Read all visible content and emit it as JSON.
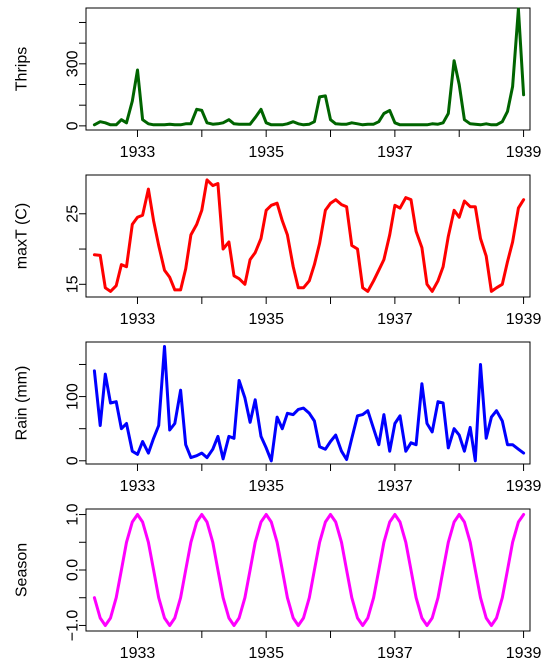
{
  "chart_data": [
    {
      "type": "line",
      "ylabel": "Thrips",
      "color": "#006400",
      "xlim": [
        1932.2,
        1939.1
      ],
      "ylim": [
        -20,
        570
      ],
      "x_ticks": [
        "1933",
        "1935",
        "1937",
        "1939"
      ],
      "y_ticks": [
        "0",
        "300"
      ],
      "y_minor_ticks": [
        0,
        100,
        200,
        300,
        400,
        500
      ],
      "series": [
        {
          "x": [
            1932.33,
            1932.42,
            1932.5,
            1932.58,
            1932.67,
            1932.75,
            1932.83,
            1932.92,
            1933.0,
            1933.08,
            1933.17,
            1933.25,
            1933.33,
            1933.42,
            1933.5,
            1933.58,
            1933.67,
            1933.75,
            1933.83,
            1933.92,
            1934.0,
            1934.08,
            1934.17,
            1934.25,
            1934.33,
            1934.42,
            1934.5,
            1934.58,
            1934.67,
            1934.75,
            1934.83,
            1934.92,
            1935.0,
            1935.08,
            1935.17,
            1935.25,
            1935.33,
            1935.42,
            1935.5,
            1935.58,
            1935.67,
            1935.75,
            1935.83,
            1935.92,
            1936.0,
            1936.08,
            1936.17,
            1936.25,
            1936.33,
            1936.42,
            1936.5,
            1936.58,
            1936.67,
            1936.75,
            1936.83,
            1936.92,
            1937.0,
            1937.08,
            1937.17,
            1937.25,
            1937.33,
            1937.42,
            1937.5,
            1937.58,
            1937.67,
            1937.75,
            1937.83,
            1937.92,
            1938.0,
            1938.08,
            1938.17,
            1938.25,
            1938.33,
            1938.42,
            1938.5,
            1938.58,
            1938.67,
            1938.75,
            1938.83,
            1938.92,
            1939.0
          ],
          "values": [
            5,
            20,
            15,
            5,
            5,
            30,
            15,
            120,
            270,
            30,
            10,
            5,
            5,
            5,
            8,
            5,
            5,
            10,
            10,
            80,
            75,
            15,
            8,
            10,
            15,
            30,
            10,
            8,
            8,
            8,
            40,
            80,
            15,
            5,
            5,
            5,
            10,
            20,
            10,
            5,
            8,
            20,
            140,
            145,
            30,
            10,
            8,
            8,
            15,
            10,
            5,
            8,
            8,
            20,
            60,
            75,
            15,
            5,
            5,
            5,
            5,
            5,
            5,
            10,
            8,
            15,
            60,
            315,
            200,
            30,
            10,
            8,
            5,
            10,
            5,
            5,
            20,
            70,
            190,
            565,
            150
          ]
        }
      ]
    },
    {
      "type": "line",
      "ylabel": "maxT (C)",
      "color": "#ff0000",
      "xlim": [
        1932.2,
        1939.1
      ],
      "ylim": [
        13.2,
        30.5
      ],
      "x_ticks": [
        "1933",
        "1935",
        "1937",
        "1939"
      ],
      "y_ticks": [
        "15",
        "25"
      ],
      "y_minor_ticks": [
        15,
        20,
        25
      ],
      "series": [
        {
          "x": [
            1932.33,
            1932.42,
            1932.5,
            1932.58,
            1932.67,
            1932.75,
            1932.83,
            1932.92,
            1933.0,
            1933.08,
            1933.17,
            1933.25,
            1933.33,
            1933.42,
            1933.5,
            1933.58,
            1933.67,
            1933.75,
            1933.83,
            1933.92,
            1934.0,
            1934.08,
            1934.17,
            1934.25,
            1934.33,
            1934.42,
            1934.5,
            1934.58,
            1934.67,
            1934.75,
            1934.83,
            1934.92,
            1935.0,
            1935.08,
            1935.17,
            1935.25,
            1935.33,
            1935.42,
            1935.5,
            1935.58,
            1935.67,
            1935.75,
            1935.83,
            1935.92,
            1936.0,
            1936.08,
            1936.17,
            1936.25,
            1936.33,
            1936.42,
            1936.5,
            1936.58,
            1936.67,
            1936.75,
            1936.83,
            1936.92,
            1937.0,
            1937.08,
            1937.17,
            1937.25,
            1937.33,
            1937.42,
            1937.5,
            1937.58,
            1937.67,
            1937.75,
            1937.83,
            1937.92,
            1938.0,
            1938.08,
            1938.17,
            1938.25,
            1938.33,
            1938.42,
            1938.5,
            1938.58,
            1938.67,
            1938.75,
            1938.83,
            1938.92,
            1939.0
          ],
          "values": [
            19.2,
            19.1,
            14.5,
            14.0,
            14.8,
            17.8,
            17.5,
            23.5,
            24.5,
            24.8,
            28.5,
            24.0,
            20.5,
            17.0,
            16.0,
            14.2,
            14.2,
            17.2,
            22.0,
            23.5,
            25.5,
            29.8,
            29.0,
            29.3,
            20.0,
            21.0,
            16.2,
            15.8,
            15.0,
            18.5,
            19.5,
            21.5,
            25.5,
            26.2,
            26.5,
            24.0,
            22.0,
            17.5,
            14.5,
            14.5,
            15.5,
            17.8,
            20.8,
            25.5,
            26.5,
            27.0,
            26.3,
            26.0,
            20.5,
            20.0,
            14.5,
            14.0,
            15.5,
            17.0,
            18.5,
            22.0,
            26.2,
            25.8,
            27.3,
            27.0,
            22.5,
            20.2,
            15.0,
            14.0,
            15.5,
            17.5,
            21.8,
            25.5,
            24.5,
            26.8,
            26.0,
            26.0,
            21.5,
            19.0,
            14.0,
            14.5,
            15.0,
            18.2,
            21.0,
            25.8,
            27.0
          ]
        }
      ]
    },
    {
      "type": "line",
      "ylabel": "Rain (mm)",
      "color": "#0000ff",
      "xlim": [
        1932.2,
        1939.1
      ],
      "ylim": [
        -5,
        185
      ],
      "x_ticks": [
        "1933",
        "1935",
        "1937",
        "1939"
      ],
      "y_ticks": [
        "0",
        "100"
      ],
      "y_minor_ticks": [
        0,
        50,
        100,
        150
      ],
      "series": [
        {
          "x": [
            1932.33,
            1932.42,
            1932.5,
            1932.58,
            1932.67,
            1932.75,
            1932.83,
            1932.92,
            1933.0,
            1933.08,
            1933.17,
            1933.25,
            1933.33,
            1933.42,
            1933.5,
            1933.58,
            1933.67,
            1933.75,
            1933.83,
            1933.92,
            1934.0,
            1934.08,
            1934.17,
            1934.25,
            1934.33,
            1934.42,
            1934.5,
            1934.58,
            1934.67,
            1934.75,
            1934.83,
            1934.92,
            1935.0,
            1935.08,
            1935.17,
            1935.25,
            1935.33,
            1935.42,
            1935.5,
            1935.58,
            1935.67,
            1935.75,
            1935.83,
            1935.92,
            1936.0,
            1936.08,
            1936.17,
            1936.25,
            1936.33,
            1936.42,
            1936.5,
            1936.58,
            1936.67,
            1936.75,
            1936.83,
            1936.92,
            1937.0,
            1937.08,
            1937.17,
            1937.25,
            1937.33,
            1937.42,
            1937.5,
            1937.58,
            1937.67,
            1937.75,
            1937.83,
            1937.92,
            1938.0,
            1938.08,
            1938.17,
            1938.25,
            1938.33,
            1938.42,
            1938.5,
            1938.58,
            1938.67,
            1938.75,
            1938.83,
            1938.92,
            1939.0
          ],
          "values": [
            140,
            55,
            135,
            90,
            92,
            50,
            58,
            15,
            10,
            30,
            12,
            35,
            55,
            178,
            48,
            58,
            110,
            25,
            5,
            8,
            12,
            5,
            18,
            38,
            3,
            38,
            35,
            125,
            98,
            60,
            95,
            38,
            20,
            0,
            68,
            50,
            74,
            72,
            80,
            82,
            74,
            62,
            22,
            18,
            30,
            40,
            15,
            2,
            35,
            70,
            72,
            78,
            50,
            25,
            72,
            15,
            58,
            70,
            15,
            28,
            25,
            120,
            58,
            45,
            92,
            90,
            20,
            50,
            40,
            15,
            52,
            0,
            150,
            35,
            68,
            78,
            62,
            25,
            25,
            18,
            12
          ]
        }
      ]
    },
    {
      "type": "line",
      "ylabel": "Season",
      "color": "#ff00ff",
      "xlim": [
        1932.2,
        1939.1
      ],
      "ylim": [
        -1.1,
        1.1
      ],
      "x_ticks": [
        "1933",
        "1935",
        "1937",
        "1939"
      ],
      "y_ticks": [
        "−1.0",
        "0.0",
        "1.0"
      ],
      "y_minor_ticks": [
        -1.0,
        -0.5,
        0.0,
        0.5,
        1.0
      ],
      "series": [
        {
          "x": [
            1932.33,
            1932.42,
            1932.5,
            1932.58,
            1932.67,
            1932.75,
            1932.83,
            1932.92,
            1933.0,
            1933.08,
            1933.17,
            1933.25,
            1933.33,
            1933.42,
            1933.5,
            1933.58,
            1933.67,
            1933.75,
            1933.83,
            1933.92,
            1934.0,
            1934.08,
            1934.17,
            1934.25,
            1934.33,
            1934.42,
            1934.5,
            1934.58,
            1934.67,
            1934.75,
            1934.83,
            1934.92,
            1935.0,
            1935.08,
            1935.17,
            1935.25,
            1935.33,
            1935.42,
            1935.5,
            1935.58,
            1935.67,
            1935.75,
            1935.83,
            1935.92,
            1936.0,
            1936.08,
            1936.17,
            1936.25,
            1936.33,
            1936.42,
            1936.5,
            1936.58,
            1936.67,
            1936.75,
            1936.83,
            1936.92,
            1937.0,
            1937.08,
            1937.17,
            1937.25,
            1937.33,
            1937.42,
            1937.5,
            1937.58,
            1937.67,
            1937.75,
            1937.83,
            1937.92,
            1938.0,
            1938.08,
            1938.17,
            1938.25,
            1938.33,
            1938.42,
            1938.5,
            1938.58,
            1938.67,
            1938.75,
            1938.83,
            1938.92,
            1939.0
          ],
          "values": [
            -0.5,
            -0.866,
            -1,
            -0.866,
            -0.5,
            0,
            0.5,
            0.866,
            1,
            0.866,
            0.5,
            0,
            -0.5,
            -0.866,
            -1,
            -0.866,
            -0.5,
            0,
            0.5,
            0.866,
            1,
            0.866,
            0.5,
            0,
            -0.5,
            -0.866,
            -1,
            -0.866,
            -0.5,
            0,
            0.5,
            0.866,
            1,
            0.866,
            0.5,
            0,
            -0.5,
            -0.866,
            -1,
            -0.866,
            -0.5,
            0,
            0.5,
            0.866,
            1,
            0.866,
            0.5,
            0,
            -0.5,
            -0.866,
            -1,
            -0.866,
            -0.5,
            0,
            0.5,
            0.866,
            1,
            0.866,
            0.5,
            0,
            -0.5,
            -0.866,
            -1,
            -0.866,
            -0.5,
            0,
            0.5,
            0.866,
            1,
            0.866,
            0.5,
            0,
            -0.5,
            -0.866,
            -1,
            -0.866,
            -0.5,
            0,
            0.5,
            0.866,
            1
          ]
        }
      ]
    }
  ]
}
